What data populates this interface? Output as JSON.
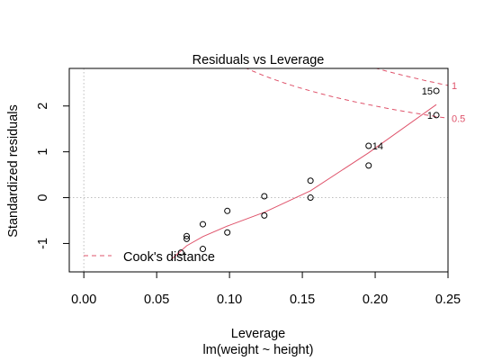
{
  "chart_data": {
    "type": "scatter",
    "title": "Residuals vs Leverage",
    "xlabel": "Leverage",
    "sublabel": "lm(weight ~ height)",
    "ylabel": "Standardized residuals",
    "xlim": [
      -0.01,
      0.25
    ],
    "ylim": [
      -1.62,
      2.82
    ],
    "xticks": [
      0.0,
      0.05,
      0.1,
      0.15,
      0.2,
      0.25
    ],
    "xtick_labels": [
      "0.00",
      "0.05",
      "0.10",
      "0.15",
      "0.20",
      "0.25"
    ],
    "yticks": [
      -1,
      0,
      1,
      2
    ],
    "ytick_labels": [
      "-1",
      "0",
      "1",
      "2"
    ],
    "reference_lines": {
      "x": 0,
      "y": 0
    },
    "points": [
      {
        "x": 0.0667,
        "y": -1.2
      },
      {
        "x": 0.0706,
        "y": -0.84
      },
      {
        "x": 0.0706,
        "y": -0.9
      },
      {
        "x": 0.0817,
        "y": -1.12
      },
      {
        "x": 0.0817,
        "y": -0.58
      },
      {
        "x": 0.0985,
        "y": -0.76
      },
      {
        "x": 0.0985,
        "y": -0.29
      },
      {
        "x": 0.1239,
        "y": 0.03
      },
      {
        "x": 0.1239,
        "y": -0.39
      },
      {
        "x": 0.1556,
        "y": 0.37
      },
      {
        "x": 0.1556,
        "y": 0.0
      },
      {
        "x": 0.1955,
        "y": 0.7
      },
      {
        "x": 0.1955,
        "y": 1.13
      },
      {
        "x": 0.242,
        "y": 2.33
      },
      {
        "x": 0.242,
        "y": 1.8
      }
    ],
    "point_labels": [
      {
        "text": "15",
        "x": 0.242,
        "y": 2.33,
        "side": "left"
      },
      {
        "text": "14",
        "x": 0.1955,
        "y": 1.13,
        "side": "right"
      },
      {
        "text": "1",
        "x": 0.242,
        "y": 1.8,
        "side": "left"
      }
    ],
    "smooth_line": [
      {
        "x": 0.06,
        "y": -1.35
      },
      {
        "x": 0.0706,
        "y": -1.05
      },
      {
        "x": 0.0817,
        "y": -0.85
      },
      {
        "x": 0.0985,
        "y": -0.62
      },
      {
        "x": 0.1239,
        "y": -0.32
      },
      {
        "x": 0.1556,
        "y": 0.15
      },
      {
        "x": 0.1955,
        "y": 0.98
      },
      {
        "x": 0.242,
        "y": 2.03
      }
    ],
    "cooks_distance": {
      "name": "Cook's distance",
      "levels": [
        0.5,
        1
      ],
      "level_labels": [
        "0.5",
        "1"
      ],
      "n_params": 2
    },
    "legend_position": "bottom-left",
    "colors": {
      "points": "#000000",
      "smooth": "#DF536B",
      "cook": "#DF536B",
      "refline": "#BEBEBE",
      "box": "#000000"
    }
  }
}
